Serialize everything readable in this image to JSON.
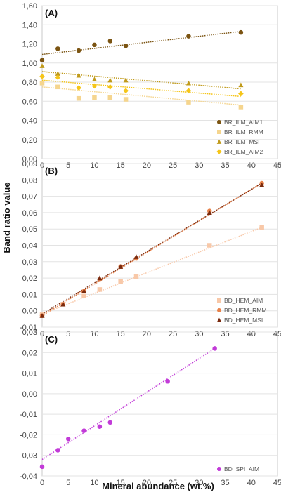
{
  "figure": {
    "ylabel": "Band ratio value",
    "xlabel": "Mineral abundance (wt.%)"
  },
  "chart_data": [
    {
      "type": "scatter",
      "panel_label": "(A)",
      "xlim": [
        0,
        45
      ],
      "ylim": [
        0,
        1.6
      ],
      "x_ticks": [
        "0",
        "5",
        "10",
        "15",
        "20",
        "25",
        "30",
        "35",
        "40",
        "45"
      ],
      "y_ticks": [
        "0,00",
        "0,20",
        "0,40",
        "0,60",
        "0,80",
        "1,00",
        "1,20",
        "1,40",
        "1,60"
      ],
      "grid": "horizontal",
      "legend_position": "bottom-right",
      "series": [
        {
          "name": "BR_ILM_AIM1",
          "marker": "circle",
          "color": "#7B5412",
          "x": [
            0,
            3,
            7,
            10,
            13,
            16,
            28,
            38
          ],
          "y": [
            1.03,
            1.15,
            1.13,
            1.19,
            1.23,
            1.18,
            1.28,
            1.32
          ],
          "trend": [
            [
              0,
              1.09
            ],
            [
              38,
              1.33
            ]
          ]
        },
        {
          "name": "BR_ILM_RMM",
          "marker": "square",
          "color": "#F5D58E",
          "x": [
            0,
            3,
            7,
            10,
            13,
            16,
            28,
            38
          ],
          "y": [
            0.79,
            0.75,
            0.63,
            0.64,
            0.64,
            0.62,
            0.59,
            0.54
          ],
          "trend": [
            [
              0,
              0.75
            ],
            [
              38,
              0.56
            ]
          ]
        },
        {
          "name": "BR_ILM_MSI",
          "marker": "triangle",
          "color": "#C09A1A",
          "x": [
            0,
            3,
            7,
            10,
            13,
            16,
            28,
            38
          ],
          "y": [
            0.97,
            0.89,
            0.87,
            0.83,
            0.82,
            0.82,
            0.79,
            0.77
          ],
          "trend": [
            [
              0,
              0.91
            ],
            [
              38,
              0.73
            ]
          ]
        },
        {
          "name": "BR_ILM_AIM2",
          "marker": "diamond",
          "color": "#F5C518",
          "x": [
            0,
            3,
            7,
            10,
            13,
            16,
            28,
            38
          ],
          "y": [
            0.86,
            0.85,
            0.74,
            0.76,
            0.75,
            0.71,
            0.71,
            0.68
          ],
          "trend": [
            [
              0,
              0.82
            ],
            [
              38,
              0.65
            ]
          ]
        }
      ]
    },
    {
      "type": "scatter",
      "panel_label": "(B)",
      "xlim": [
        0,
        45
      ],
      "ylim": [
        -0.01,
        0.09
      ],
      "x_ticks": [
        "0",
        "5",
        "10",
        "15",
        "20",
        "25",
        "30",
        "35",
        "40",
        "45"
      ],
      "y_ticks": [
        "-0,01",
        "0,00",
        "0,01",
        "0,02",
        "0,03",
        "0,04",
        "0,05",
        "0,06",
        "0,07",
        "0,08",
        "0,09"
      ],
      "grid": "horizontal",
      "legend_position": "bottom-right",
      "series": [
        {
          "name": "BD_HEM_AIM",
          "marker": "square",
          "color": "#F8C8A8",
          "x": [
            0,
            4,
            8,
            11,
            15,
            18,
            32,
            42
          ],
          "y": [
            -0.002,
            0.004,
            0.009,
            0.013,
            0.018,
            0.021,
            0.04,
            0.051
          ],
          "trend": [
            [
              0,
              -0.002
            ],
            [
              42,
              0.051
            ]
          ]
        },
        {
          "name": "BD_HEM_RMM",
          "marker": "circle",
          "color": "#E8824A",
          "x": [
            0,
            4,
            8,
            11,
            15,
            18,
            32,
            42
          ],
          "y": [
            -0.003,
            0.004,
            0.012,
            0.019,
            0.027,
            0.032,
            0.061,
            0.078
          ],
          "trend": [
            [
              0,
              -0.003
            ],
            [
              42,
              0.078
            ]
          ]
        },
        {
          "name": "BD_HEM_MSI",
          "marker": "triangle",
          "color": "#7A2A0E",
          "x": [
            0,
            4,
            8,
            11,
            15,
            18,
            32,
            42
          ],
          "y": [
            -0.003,
            0.004,
            0.012,
            0.02,
            0.027,
            0.033,
            0.06,
            0.077
          ],
          "trend": [
            [
              0,
              -0.002
            ],
            [
              42,
              0.078
            ]
          ]
        }
      ]
    },
    {
      "type": "scatter",
      "panel_label": "(C)",
      "xlim": [
        0,
        45
      ],
      "ylim": [
        -0.04,
        0.03
      ],
      "x_ticks": [
        "0",
        "5",
        "10",
        "15",
        "20",
        "25",
        "30",
        "35",
        "40",
        "45"
      ],
      "y_ticks": [
        "-0,04",
        "-0,03",
        "-0,02",
        "-0,01",
        "0,00",
        "0,01",
        "0,02",
        "0,03"
      ],
      "grid": "horizontal",
      "legend_position": "bottom-right",
      "series": [
        {
          "name": "BD_SPI_AIM",
          "marker": "circle",
          "color": "#C23BD8",
          "x": [
            0,
            3,
            5,
            8,
            11,
            13,
            24,
            33
          ],
          "y": [
            -0.0355,
            -0.0275,
            -0.022,
            -0.018,
            -0.016,
            -0.014,
            0.006,
            0.022
          ],
          "trend": [
            [
              0,
              -0.032
            ],
            [
              33,
              0.022
            ]
          ]
        }
      ]
    }
  ]
}
